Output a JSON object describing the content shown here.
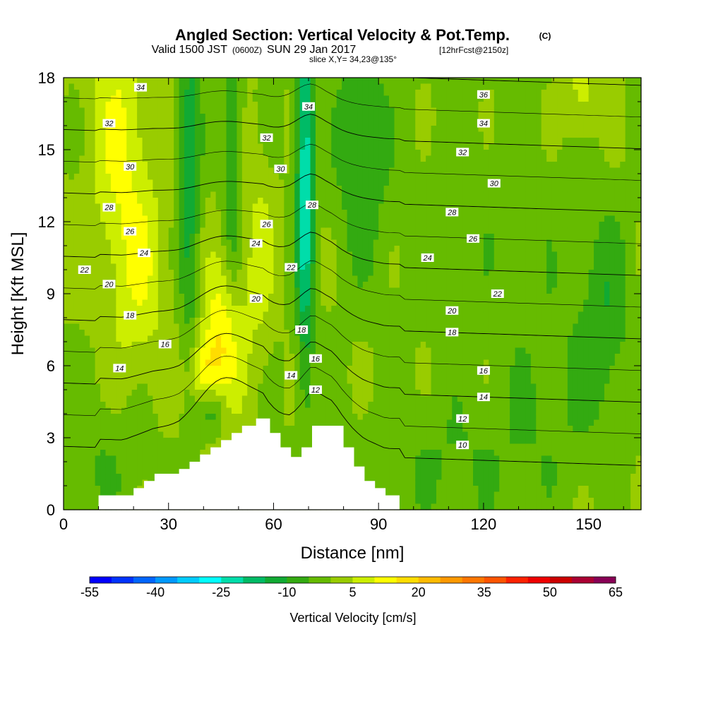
{
  "header": {
    "title_main": "Angled Section: Vertical Velocity & Pot.Temp.",
    "title_units": "(C)",
    "valid_a": "Valid 1500 JST",
    "valid_utc": "(0600Z)",
    "valid_b": "SUN 29 Jan 2017",
    "valid_fcst": "[12hrFcst@2150z]",
    "slice": "slice X,Y= 34,23@135°"
  },
  "chart_data": {
    "type": "heatmap",
    "title": "Angled Section: Vertical Velocity & Pot.Temp. (C)",
    "xlabel": "Distance [nm]",
    "ylabel": "Height [Kft MSL]",
    "xlim": [
      0,
      165
    ],
    "ylim": [
      0,
      18
    ],
    "x_ticks": [
      0,
      30,
      60,
      90,
      120,
      150
    ],
    "y_ticks": [
      0,
      3,
      6,
      9,
      12,
      15,
      18
    ],
    "x_tick_labels": [
      "0",
      "30",
      "60",
      "90",
      "120",
      "150"
    ],
    "y_tick_labels": [
      "0",
      "3",
      "6",
      "9",
      "12",
      "15",
      "18"
    ],
    "background_velocity": 0,
    "velocity_features": [
      {
        "x": 16,
        "z": 15.5,
        "sx": 6,
        "sz": 4,
        "w": 10
      },
      {
        "x": 22,
        "z": 9.5,
        "sx": 6,
        "sz": 3,
        "w": 8
      },
      {
        "x": 46,
        "z": 7.2,
        "sx": 4,
        "sz": 2.5,
        "w": 15
      },
      {
        "x": 40,
        "z": 5.5,
        "sx": 3,
        "sz": 1.3,
        "w": 14
      },
      {
        "x": 56,
        "z": 10.5,
        "sx": 3,
        "sz": 3,
        "w": 7
      },
      {
        "x": 148,
        "z": 17.3,
        "sx": 3,
        "sz": 1.5,
        "w": 8
      },
      {
        "x": 36,
        "z": 14,
        "sx": 2.2,
        "sz": 6,
        "w": -13
      },
      {
        "x": 48,
        "z": 14.5,
        "sx": 2,
        "sz": 5,
        "w": -10
      },
      {
        "x": 69,
        "z": 14,
        "sx": 1.8,
        "sz": 6,
        "w": -24
      },
      {
        "x": 85,
        "z": 15.5,
        "sx": 5,
        "sz": 3.5,
        "w": -10
      },
      {
        "x": 42,
        "z": 4.2,
        "sx": 3,
        "sz": 0.8,
        "w": -14
      },
      {
        "x": 155,
        "z": 8,
        "sx": 5,
        "sz": 3,
        "w": -8
      },
      {
        "x": 140,
        "z": 5,
        "sx": 10,
        "sz": 3,
        "w": -4
      },
      {
        "x": 110,
        "z": 2,
        "sx": 20,
        "sz": 2,
        "w": -5
      },
      {
        "x": 10,
        "z": 2,
        "sx": 10,
        "sz": 2,
        "w": -5
      },
      {
        "x": 120,
        "z": 12,
        "sx": 25,
        "sz": 4,
        "w": -3
      }
    ],
    "isentropes": {
      "levels": [
        10,
        12,
        14,
        16,
        18,
        20,
        22,
        24,
        26,
        28,
        30,
        32,
        34,
        36
      ],
      "label_points": [
        {
          "text": "34",
          "x": 22,
          "z": 17.6
        },
        {
          "text": "32",
          "x": 13,
          "z": 16.1
        },
        {
          "text": "30",
          "x": 19,
          "z": 14.3
        },
        {
          "text": "28",
          "x": 13,
          "z": 12.6
        },
        {
          "text": "26",
          "x": 19,
          "z": 11.6
        },
        {
          "text": "24",
          "x": 23,
          "z": 10.7
        },
        {
          "text": "22",
          "x": 6,
          "z": 10.0
        },
        {
          "text": "20",
          "x": 13,
          "z": 9.4
        },
        {
          "text": "18",
          "x": 19,
          "z": 8.1
        },
        {
          "text": "16",
          "x": 29,
          "z": 6.9
        },
        {
          "text": "14",
          "x": 16,
          "z": 5.9
        },
        {
          "text": "34",
          "x": 70,
          "z": 16.8
        },
        {
          "text": "32",
          "x": 58,
          "z": 15.5
        },
        {
          "text": "30",
          "x": 62,
          "z": 14.2
        },
        {
          "text": "28",
          "x": 71,
          "z": 12.7
        },
        {
          "text": "26",
          "x": 58,
          "z": 11.9
        },
        {
          "text": "24",
          "x": 55,
          "z": 11.1
        },
        {
          "text": "22",
          "x": 65,
          "z": 10.1
        },
        {
          "text": "20",
          "x": 55,
          "z": 8.8
        },
        {
          "text": "18",
          "x": 68,
          "z": 7.5
        },
        {
          "text": "16",
          "x": 72,
          "z": 6.3
        },
        {
          "text": "14",
          "x": 65,
          "z": 5.6
        },
        {
          "text": "12",
          "x": 72,
          "z": 5.0
        },
        {
          "text": "36",
          "x": 120,
          "z": 17.3
        },
        {
          "text": "34",
          "x": 120,
          "z": 16.1
        },
        {
          "text": "32",
          "x": 114,
          "z": 14.9
        },
        {
          "text": "30",
          "x": 123,
          "z": 13.6
        },
        {
          "text": "28",
          "x": 111,
          "z": 12.4
        },
        {
          "text": "26",
          "x": 117,
          "z": 11.3
        },
        {
          "text": "24",
          "x": 104,
          "z": 10.5
        },
        {
          "text": "22",
          "x": 124,
          "z": 9.0
        },
        {
          "text": "20",
          "x": 111,
          "z": 8.3
        },
        {
          "text": "18",
          "x": 111,
          "z": 7.4
        },
        {
          "text": "16",
          "x": 120,
          "z": 5.8
        },
        {
          "text": "14",
          "x": 120,
          "z": 4.7
        },
        {
          "text": "12",
          "x": 114,
          "z": 3.8
        },
        {
          "text": "10",
          "x": 114,
          "z": 2.7
        }
      ]
    },
    "terrain": [
      [
        10,
        0.6
      ],
      [
        17,
        0.6
      ],
      [
        20,
        0.9
      ],
      [
        23,
        1.2
      ],
      [
        26,
        1.5
      ],
      [
        33,
        1.7
      ],
      [
        36,
        2.0
      ],
      [
        39,
        2.3
      ],
      [
        42,
        2.6
      ],
      [
        45,
        2.9
      ],
      [
        48,
        3.2
      ],
      [
        51,
        3.5
      ],
      [
        55,
        3.8
      ],
      [
        57,
        3.8
      ],
      [
        59,
        3.2
      ],
      [
        62,
        2.6
      ],
      [
        65,
        2.2
      ],
      [
        68,
        2.6
      ],
      [
        71,
        3.5
      ],
      [
        77,
        3.5
      ],
      [
        80,
        2.6
      ],
      [
        83,
        1.8
      ],
      [
        86,
        1.2
      ],
      [
        89,
        0.9
      ],
      [
        92,
        0.6
      ],
      [
        96,
        0.6
      ]
    ],
    "colorbar": {
      "label": "Vertical Velocity [cm/s]",
      "tick_labels": [
        "-55",
        "-40",
        "-25",
        "-10",
        "5",
        "20",
        "35",
        "50",
        "65"
      ],
      "min": -55,
      "max": 65,
      "step": 5,
      "colors": [
        "#0000ff",
        "#0033ff",
        "#0066ff",
        "#0099ff",
        "#00ccff",
        "#00ffff",
        "#00ddaa",
        "#00bb66",
        "#11aa33",
        "#33aa11",
        "#66bb00",
        "#99cc00",
        "#ccee00",
        "#ffff00",
        "#ffdd00",
        "#ffbb00",
        "#ff9900",
        "#ff7700",
        "#ff5500",
        "#ff2200",
        "#ee0000",
        "#cc0000",
        "#aa0033",
        "#880055",
        "#660077"
      ]
    }
  }
}
